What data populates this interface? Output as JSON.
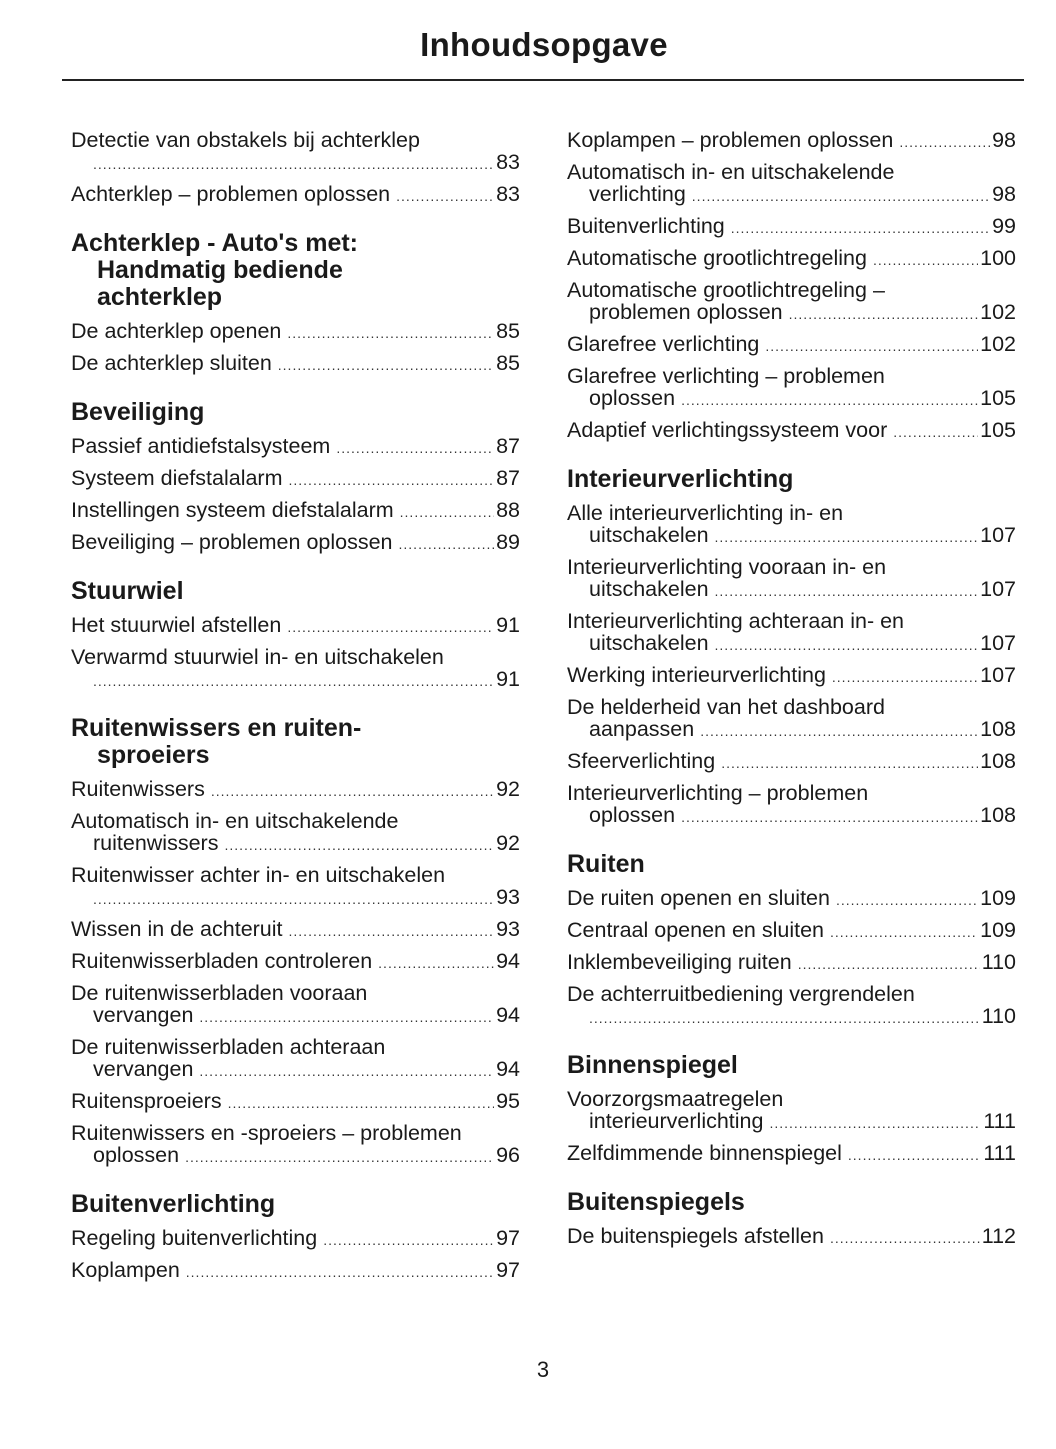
{
  "title": "Inhoudsopgave",
  "page_number": "3",
  "columns": [
    [
      {
        "type": "entry",
        "text": "Detectie van obstakels bij achterklep",
        "cont": "",
        "page": "83",
        "wrap": true
      },
      {
        "type": "entry",
        "text": "Achterklep – problemen oplossen",
        "page": "83"
      },
      {
        "type": "heading",
        "lines": [
          "Achterklep - Auto's met:",
          "Handmatig bediende",
          "achterklep"
        ]
      },
      {
        "type": "entry",
        "text": "De achterklep openen",
        "page": "85"
      },
      {
        "type": "entry",
        "text": "De achterklep sluiten",
        "page": "85"
      },
      {
        "type": "heading",
        "lines": [
          "Beveiliging"
        ]
      },
      {
        "type": "entry",
        "text": "Passief antidiefstalsysteem",
        "page": "87"
      },
      {
        "type": "entry",
        "text": "Systeem diefstalalarm",
        "page": "87"
      },
      {
        "type": "entry",
        "text": "Instellingen systeem diefstalalarm",
        "page": "88"
      },
      {
        "type": "entry",
        "text": "Beveiliging – problemen oplossen",
        "page": "89"
      },
      {
        "type": "heading",
        "lines": [
          "Stuurwiel"
        ]
      },
      {
        "type": "entry",
        "text": "Het stuurwiel afstellen",
        "page": "91"
      },
      {
        "type": "entry",
        "text": "Verwarmd stuurwiel in- en uitschakelen",
        "cont": "",
        "page": "91",
        "wrap": true
      },
      {
        "type": "heading",
        "lines": [
          "Ruitenwissers en ruiten-",
          "sproeiers"
        ]
      },
      {
        "type": "entry",
        "text": "Ruitenwissers",
        "page": "92"
      },
      {
        "type": "entry",
        "text": "Automatisch in- en uitschakelende",
        "cont": "ruitenwissers",
        "page": "92",
        "wrap": true
      },
      {
        "type": "entry",
        "text": "Ruitenwisser achter in- en uitschakelen",
        "cont": "",
        "page": "93",
        "wrap": true
      },
      {
        "type": "entry",
        "text": "Wissen in de achteruit",
        "page": "93"
      },
      {
        "type": "entry",
        "text": "Ruitenwisserbladen controleren",
        "page": "94"
      },
      {
        "type": "entry",
        "text": "De ruitenwisserbladen vooraan",
        "cont": "vervangen",
        "page": "94",
        "wrap": true
      },
      {
        "type": "entry",
        "text": "De ruitenwisserbladen achteraan",
        "cont": "vervangen",
        "page": "94",
        "wrap": true
      },
      {
        "type": "entry",
        "text": "Ruitensproeiers",
        "page": "95"
      },
      {
        "type": "entry",
        "text": "Ruitenwissers en -sproeiers – problemen",
        "cont": "oplossen",
        "page": "96",
        "wrap": true
      },
      {
        "type": "heading",
        "lines": [
          "Buitenverlichting"
        ]
      },
      {
        "type": "entry",
        "text": "Regeling buitenverlichting",
        "page": "97"
      },
      {
        "type": "entry",
        "text": "Koplampen",
        "page": "97"
      }
    ],
    [
      {
        "type": "entry",
        "text": "Koplampen – problemen oplossen",
        "page": "98"
      },
      {
        "type": "entry",
        "text": "Automatisch in- en uitschakelende",
        "cont": "verlichting",
        "page": "98",
        "wrap": true
      },
      {
        "type": "entry",
        "text": "Buitenverlichting",
        "page": "99"
      },
      {
        "type": "entry",
        "text": "Automatische grootlichtregeling",
        "page": "100"
      },
      {
        "type": "entry",
        "text": "Automatische grootlichtregeling –",
        "cont": "problemen oplossen",
        "page": "102",
        "wrap": true
      },
      {
        "type": "entry",
        "text": "Glarefree verlichting",
        "page": "102"
      },
      {
        "type": "entry",
        "text": "Glarefree verlichting – problemen",
        "cont": "oplossen",
        "page": "105",
        "wrap": true
      },
      {
        "type": "entry",
        "text": "Adaptief verlichtingssysteem voor",
        "page": "105"
      },
      {
        "type": "heading",
        "lines": [
          "Interieurverlichting"
        ]
      },
      {
        "type": "entry",
        "text": "Alle interieurverlichting in- en",
        "cont": "uitschakelen",
        "page": "107",
        "wrap": true
      },
      {
        "type": "entry",
        "text": "Interieurverlichting vooraan in- en",
        "cont": "uitschakelen",
        "page": "107",
        "wrap": true
      },
      {
        "type": "entry",
        "text": "Interieurverlichting achteraan in- en",
        "cont": "uitschakelen",
        "page": "107",
        "wrap": true
      },
      {
        "type": "entry",
        "text": "Werking interieurverlichting",
        "page": "107"
      },
      {
        "type": "entry",
        "text": "De helderheid van het dashboard",
        "cont": "aanpassen",
        "page": "108",
        "wrap": true
      },
      {
        "type": "entry",
        "text": "Sfeerverlichting",
        "page": "108"
      },
      {
        "type": "entry",
        "text": "Interieurverlichting – problemen",
        "cont": "oplossen",
        "page": "108",
        "wrap": true
      },
      {
        "type": "heading",
        "lines": [
          "Ruiten"
        ]
      },
      {
        "type": "entry",
        "text": "De ruiten openen en sluiten",
        "page": "109"
      },
      {
        "type": "entry",
        "text": "Centraal openen en sluiten",
        "page": "109"
      },
      {
        "type": "entry",
        "text": "Inklembeveiliging ruiten",
        "page": "110"
      },
      {
        "type": "entry",
        "text": "De achterruitbediening vergrendelen",
        "cont": "",
        "page": "110",
        "wrap": true
      },
      {
        "type": "heading",
        "lines": [
          "Binnenspiegel"
        ]
      },
      {
        "type": "entry",
        "text": "Voorzorgsmaatregelen",
        "cont": "interieurverlichting",
        "page": "111",
        "wrap": true
      },
      {
        "type": "entry",
        "text": "Zelfdimmende binnenspiegel",
        "page": "111"
      },
      {
        "type": "heading",
        "lines": [
          "Buitenspiegels"
        ]
      },
      {
        "type": "entry",
        "text": "De buitenspiegels afstellen",
        "page": "112"
      }
    ]
  ]
}
